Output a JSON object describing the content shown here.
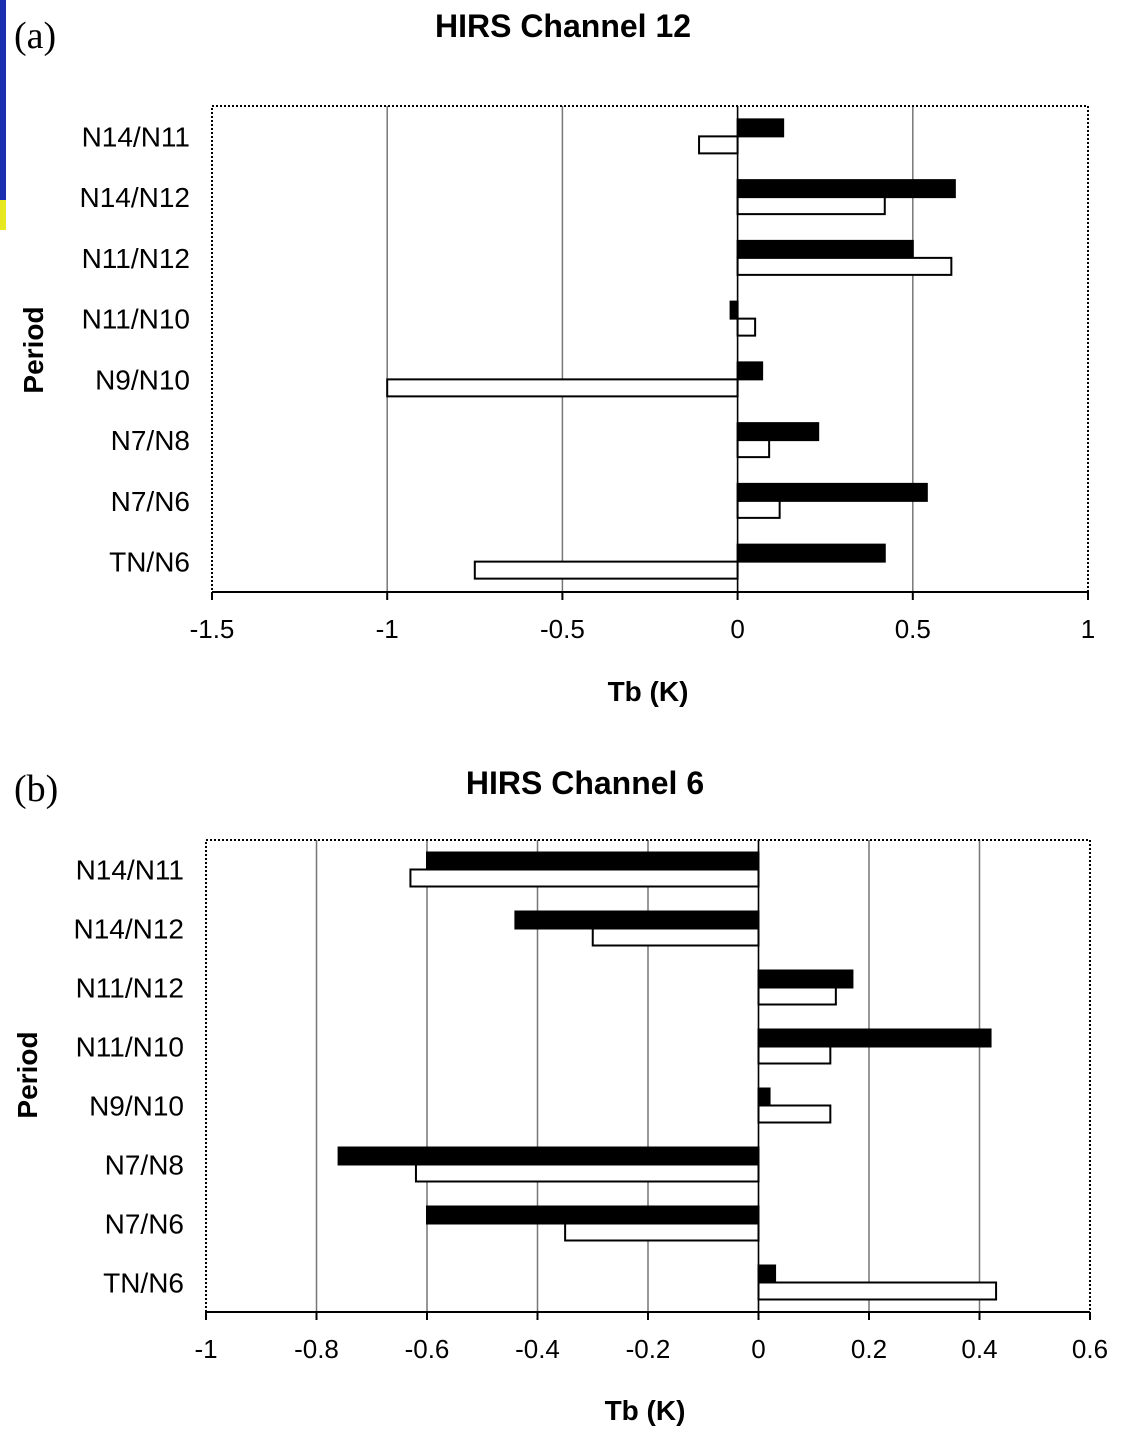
{
  "chart_data": [
    {
      "type": "bar",
      "orientation": "horizontal",
      "panel": "(a)",
      "title": "HIRS Channel 12",
      "xlabel": "Tb (K)",
      "ylabel": "Period",
      "xlim": [
        -1.5,
        1
      ],
      "xticks": [
        "-1.5",
        "-1",
        "-0.5",
        "0",
        "0.5",
        "1"
      ],
      "xtick_values": [
        -1.5,
        -1,
        -0.5,
        0,
        0.5,
        1
      ],
      "grid": true,
      "categories": [
        "N14/N11",
        "N14/N12",
        "N11/N12",
        "N11/N10",
        "N9/N10",
        "N7/N8",
        "N7/N6",
        "TN/N6"
      ],
      "series": [
        {
          "values": [
            0.13,
            0.62,
            0.5,
            -0.02,
            0.07,
            0.23,
            0.54,
            0.42
          ],
          "fill": "#000000"
        },
        {
          "values": [
            -0.11,
            0.42,
            0.61,
            0.05,
            -1.0,
            0.09,
            0.12,
            -0.75
          ],
          "fill": "#ffffff"
        }
      ]
    },
    {
      "type": "bar",
      "orientation": "horizontal",
      "panel": "(b)",
      "title": "HIRS Channel 6",
      "xlabel": "Tb (K)",
      "ylabel": "Period",
      "xlim": [
        -1,
        0.6
      ],
      "xticks": [
        "-1",
        "-0.8",
        "-0.6",
        "-0.4",
        "-0.2",
        "0",
        "0.2",
        "0.4",
        "0.6"
      ],
      "xtick_values": [
        -1,
        -0.8,
        -0.6,
        -0.4,
        -0.2,
        0,
        0.2,
        0.4,
        0.6
      ],
      "grid": true,
      "categories": [
        "N14/N11",
        "N14/N12",
        "N11/N12",
        "N11/N10",
        "N9/N10",
        "N7/N8",
        "N7/N6",
        "TN/N6"
      ],
      "series": [
        {
          "values": [
            -0.6,
            -0.44,
            0.17,
            0.42,
            0.02,
            -0.76,
            -0.6,
            0.03
          ],
          "fill": "#000000"
        },
        {
          "values": [
            -0.63,
            -0.3,
            0.14,
            0.13,
            0.13,
            -0.62,
            -0.35,
            0.43
          ],
          "fill": "#ffffff"
        }
      ]
    }
  ]
}
